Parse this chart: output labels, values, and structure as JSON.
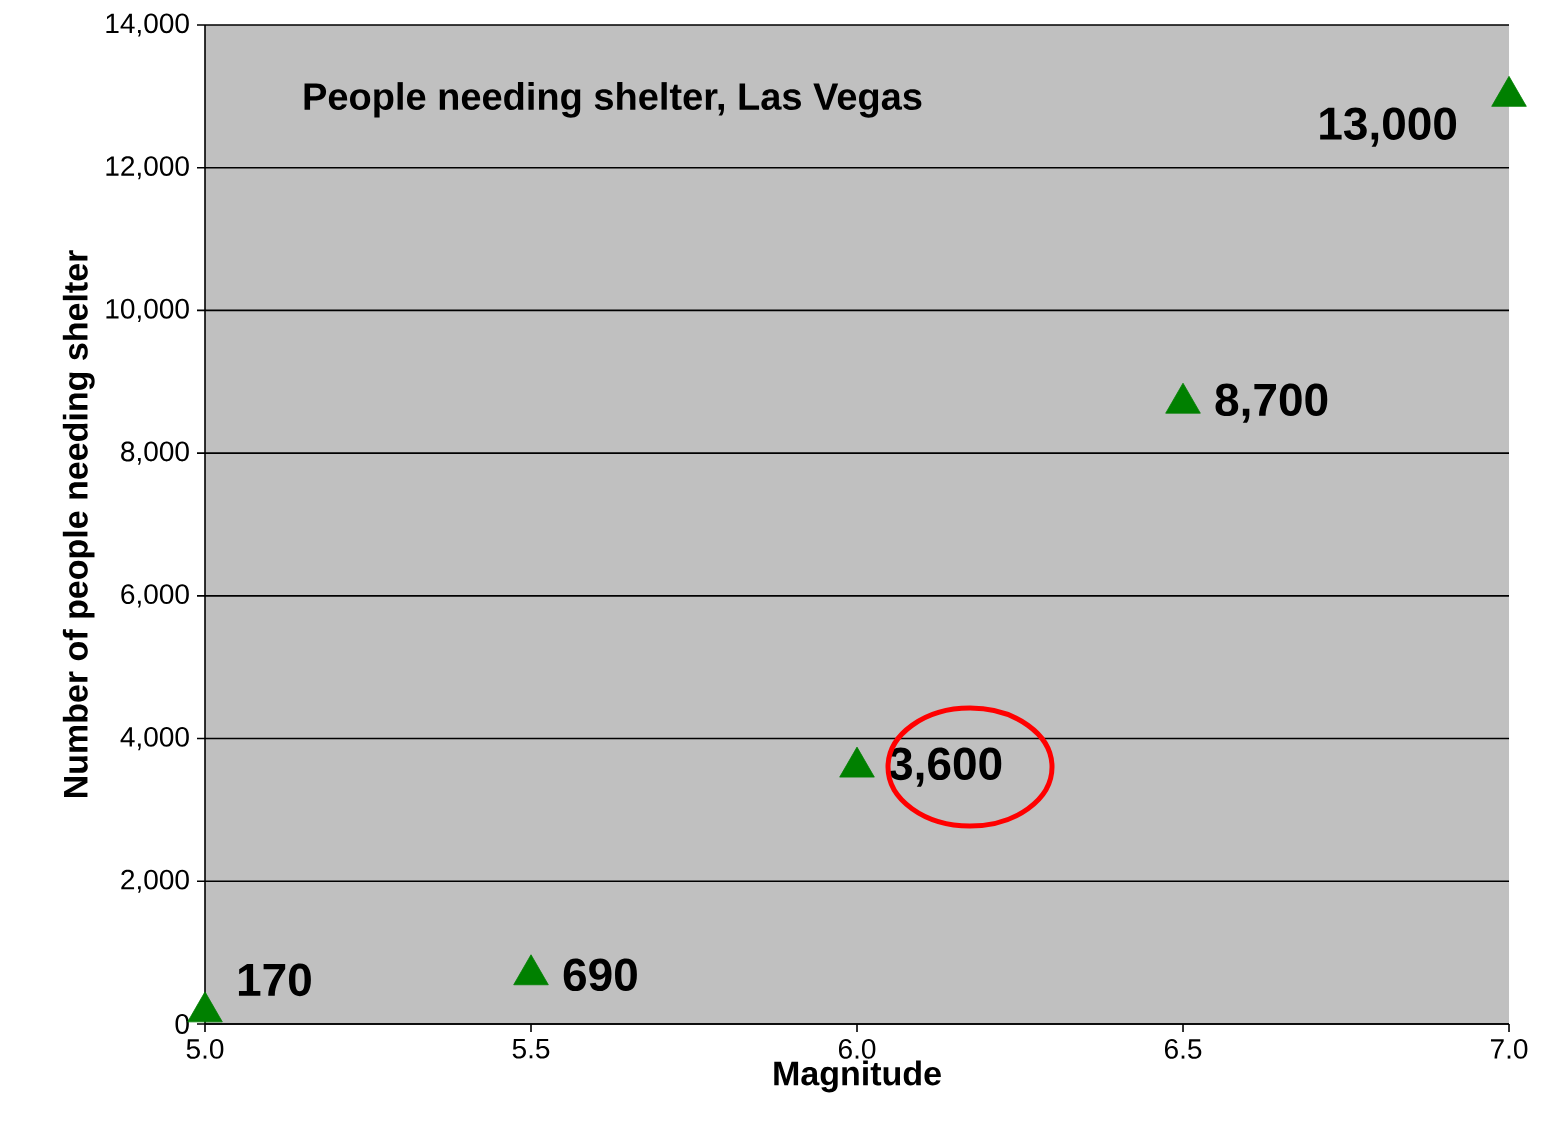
{
  "chart_data": {
    "type": "scatter",
    "title": "People needing shelter, Las Vegas",
    "xlabel": "Magnitude",
    "ylabel": "Number of people needing shelter",
    "x": [
      5.0,
      5.5,
      6.0,
      6.5,
      7.0
    ],
    "series": [
      {
        "color": "#008000",
        "values": [
          170,
          690,
          3600,
          8700,
          13000
        ],
        "value_labels": [
          "170",
          "690",
          "3,600",
          "8,700",
          "13,000"
        ]
      }
    ],
    "xlim": [
      5.0,
      7.0
    ],
    "ylim": [
      0,
      14000
    ],
    "xticks": [
      {
        "value": 5.0,
        "label": "5.0"
      },
      {
        "value": 5.5,
        "label": "5.5"
      },
      {
        "value": 6.0,
        "label": "6.0"
      },
      {
        "value": 6.5,
        "label": "6.5"
      },
      {
        "value": 7.0,
        "label": "7.0"
      }
    ],
    "yticks": [
      0,
      {
        "value": 2000,
        "label": "2,000"
      },
      {
        "value": 4000,
        "label": "4,000"
      },
      {
        "value": 6000,
        "label": "6,000"
      },
      {
        "value": 8000,
        "label": "8,000"
      },
      {
        "value": 10000,
        "label": "10,000"
      },
      {
        "value": 12000,
        "label": "12,000"
      },
      {
        "value": 14000,
        "label": "14,000"
      }
    ],
    "grid": "y",
    "legend": false,
    "marker": "triangle"
  }
}
